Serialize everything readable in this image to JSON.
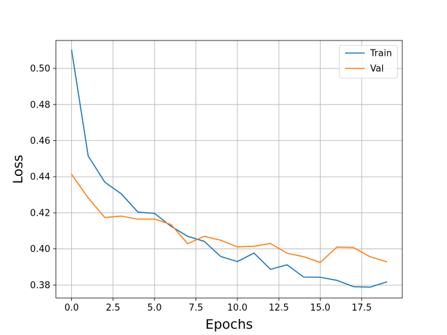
{
  "chart_data": {
    "type": "line",
    "xlabel": "Epochs",
    "ylabel": "Loss",
    "xlim": [
      -0.95,
      19.95
    ],
    "ylim": [
      0.3728,
      0.5155
    ],
    "xticks": [
      0.0,
      2.5,
      5.0,
      7.5,
      10.0,
      12.5,
      15.0,
      17.5
    ],
    "xtick_labels": [
      "0.0",
      "2.5",
      "5.0",
      "7.5",
      "10.0",
      "12.5",
      "15.0",
      "17.5"
    ],
    "yticks": [
      0.38,
      0.4,
      0.42,
      0.44,
      0.46,
      0.48,
      0.5
    ],
    "ytick_labels": [
      "0.38",
      "0.40",
      "0.42",
      "0.44",
      "0.46",
      "0.48",
      "0.50"
    ],
    "grid": true,
    "legend_position": "top-right",
    "x": [
      0,
      1,
      2,
      3,
      4,
      5,
      6,
      7,
      8,
      9,
      10,
      11,
      12,
      13,
      14,
      15,
      16,
      17,
      18,
      19
    ],
    "series": [
      {
        "name": "Train",
        "color": "#1f77b4",
        "values": [
          0.51,
          0.4515,
          0.437,
          0.4305,
          0.4204,
          0.4197,
          0.4125,
          0.407,
          0.4042,
          0.3958,
          0.393,
          0.3977,
          0.3887,
          0.3912,
          0.3844,
          0.3843,
          0.3826,
          0.3791,
          0.3788,
          0.3817
        ]
      },
      {
        "name": "Val",
        "color": "#ff7f0e",
        "values": [
          0.4413,
          0.4283,
          0.4174,
          0.4182,
          0.4165,
          0.4166,
          0.4135,
          0.4029,
          0.407,
          0.4048,
          0.4011,
          0.4015,
          0.403,
          0.3976,
          0.3957,
          0.3925,
          0.401,
          0.4008,
          0.3957,
          0.3929
        ]
      }
    ]
  }
}
